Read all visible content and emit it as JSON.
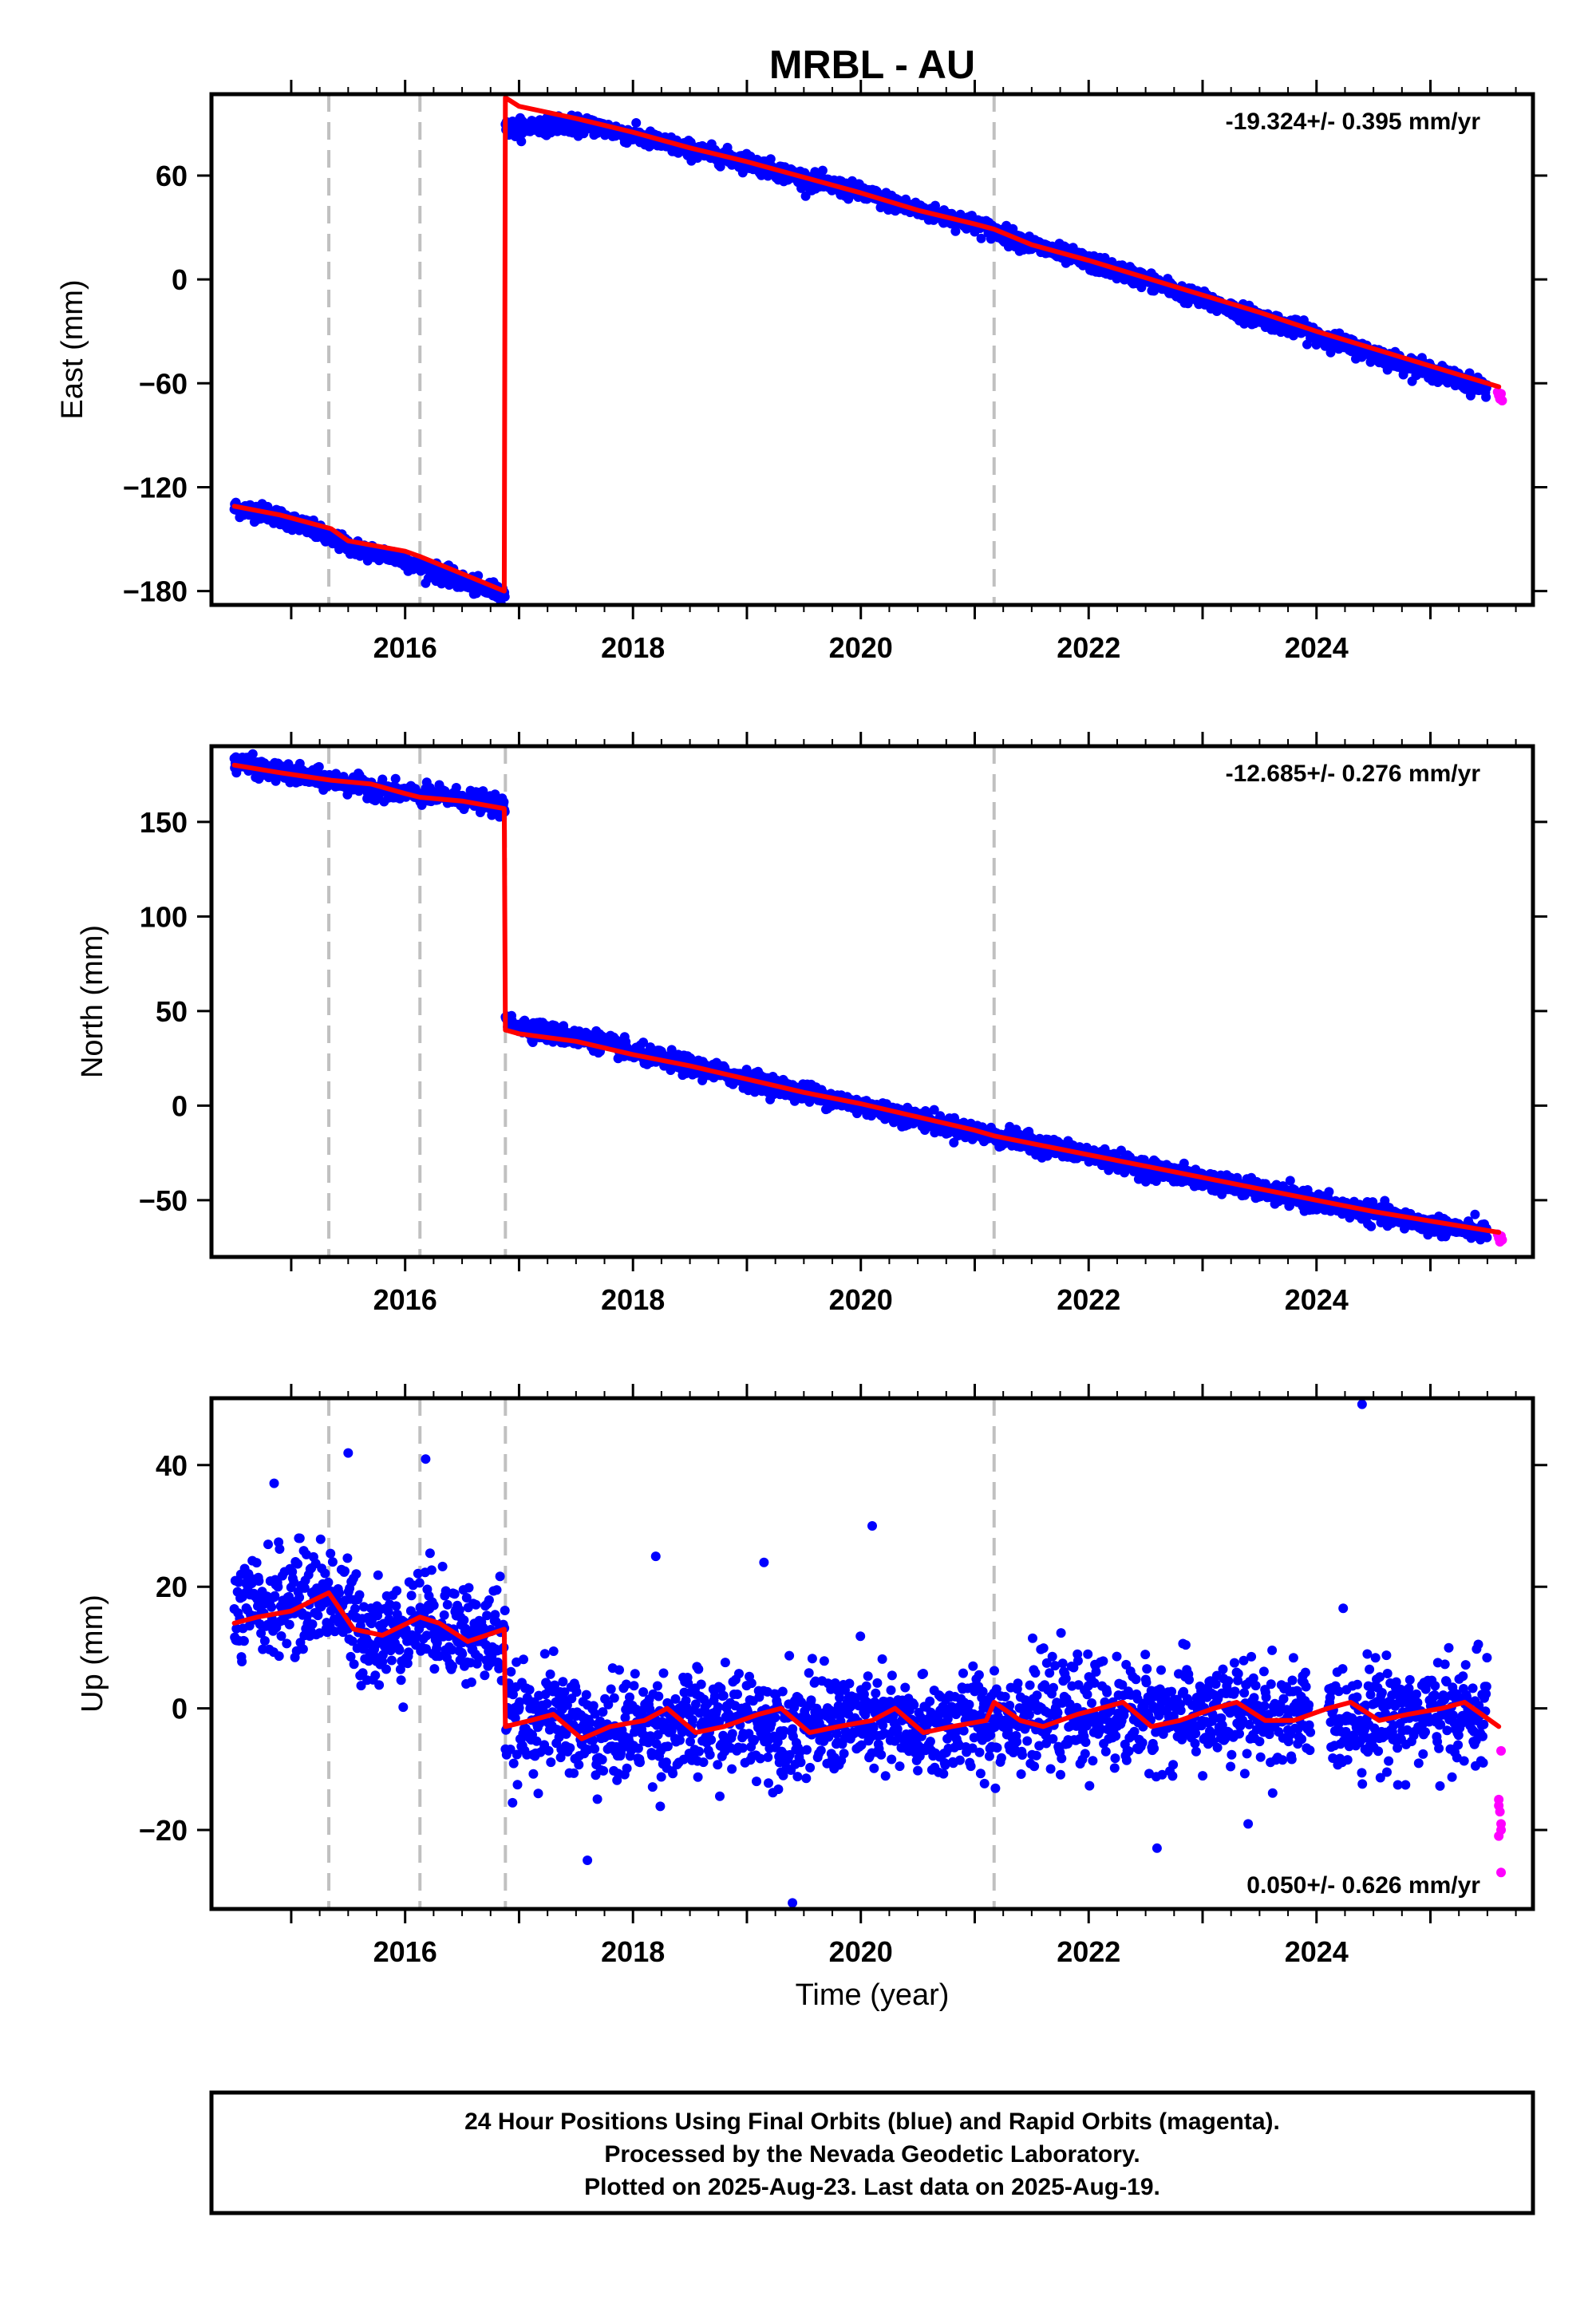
{
  "colors": {
    "final_orbits": "#0000ff",
    "rapid_orbits": "#ff00ff",
    "model": "#ff0000",
    "event_lines": "#c0c0c0",
    "frame": "#000000"
  },
  "figure": {
    "title": "MRBL - AU",
    "xlabel": "Time (year)",
    "footer": [
      "24 Hour Positions Using Final Orbits (blue) and Rapid Orbits (magenta).",
      "Processed by the Nevada Geodetic Laboratory.",
      "Plotted on 2025-Aug-23. Last data on 2025-Aug-19."
    ]
  },
  "chart_data": [
    {
      "type": "scatter",
      "panel": "east",
      "ylabel": "East (mm)",
      "rate_label": "-19.324+/- 0.395 mm/yr",
      "rate_position": "top-right",
      "xlim": [
        2014.3,
        2025.9
      ],
      "ylim": [
        -188,
        107
      ],
      "xticks": [
        2016,
        2018,
        2020,
        2022,
        2024
      ],
      "yticks": [
        -180,
        -120,
        -60,
        0,
        60
      ],
      "event_lines": [
        2015.33,
        2016.13,
        2021.17
      ],
      "offset_epoch": 2016.88,
      "final_series": {
        "name": "Final Orbits",
        "x": [
          2014.5,
          2014.8,
          2015.1,
          2015.35,
          2015.6,
          2015.9,
          2016.13,
          2016.4,
          2016.65,
          2016.88,
          2016.92,
          2017.3,
          2017.7,
          2018.0,
          2018.5,
          2019.0,
          2019.5,
          2020.0,
          2020.5,
          2021.0,
          2021.5,
          2022.0,
          2022.5,
          2023.0,
          2023.5,
          2024.0,
          2024.5,
          2025.0,
          2025.5
        ],
        "y": [
          -132,
          -135,
          -142,
          -150,
          -156,
          -160,
          -166,
          -172,
          -178,
          -181,
          87,
          90,
          88,
          83,
          75,
          68,
          58,
          50,
          40,
          32,
          20,
          10,
          0,
          -12,
          -22,
          -32,
          -43,
          -53,
          -63
        ]
      },
      "rapid_series": {
        "name": "Rapid Orbits",
        "x": [
          2025.59,
          2025.6,
          2025.61,
          2025.62,
          2025.63
        ],
        "y": [
          -65,
          -67,
          -69,
          -66,
          -70
        ]
      },
      "model_series": {
        "x": [
          2014.5,
          2014.9,
          2015.35,
          2015.5,
          2016.0,
          2016.13,
          2016.5,
          2016.87,
          2016.88,
          2017.0,
          2017.5,
          2018.0,
          2018.5,
          2019.0,
          2019.5,
          2020.0,
          2020.5,
          2021.0,
          2021.17,
          2021.5,
          2022.0,
          2022.5,
          2023.0,
          2023.5,
          2024.0,
          2024.5,
          2025.0,
          2025.6
        ],
        "y": [
          -131,
          -136,
          -144,
          -151,
          -157,
          -160,
          -170,
          -180,
          105,
          100,
          93,
          85,
          76,
          68,
          59,
          50,
          40,
          32,
          29,
          20,
          11,
          1,
          -9,
          -19,
          -30,
          -40,
          -50,
          -62
        ]
      }
    },
    {
      "type": "scatter",
      "panel": "north",
      "ylabel": "North (mm)",
      "rate_label": "-12.685+/- 0.276 mm/yr",
      "rate_position": "top-right",
      "xlim": [
        2014.3,
        2025.9
      ],
      "ylim": [
        -80,
        190
      ],
      "xticks": [
        2016,
        2018,
        2020,
        2022,
        2024
      ],
      "yticks": [
        -50,
        0,
        50,
        100,
        150
      ],
      "event_lines": [
        2015.33,
        2016.13,
        2016.88,
        2021.17
      ],
      "offset_epoch": 2016.88,
      "final_series": {
        "name": "Final Orbits",
        "x": [
          2014.5,
          2014.8,
          2015.1,
          2015.35,
          2015.6,
          2015.9,
          2016.13,
          2016.4,
          2016.65,
          2016.86,
          2016.9,
          2017.3,
          2017.7,
          2018.0,
          2018.5,
          2019.0,
          2019.5,
          2020.0,
          2020.5,
          2021.0,
          2021.5,
          2022.0,
          2022.5,
          2023.0,
          2023.5,
          2024.0,
          2024.5,
          2025.0,
          2025.5
        ],
        "y": [
          182,
          177,
          174,
          172,
          169,
          166,
          164,
          163,
          161,
          157,
          44,
          38,
          34,
          28,
          21,
          14,
          7,
          0,
          -7,
          -14,
          -20,
          -26,
          -33,
          -39,
          -45,
          -51,
          -57,
          -63,
          -67
        ]
      },
      "rapid_series": {
        "name": "Rapid Orbits",
        "x": [
          2025.59,
          2025.6,
          2025.61,
          2025.62,
          2025.63
        ],
        "y": [
          -68,
          -70,
          -72,
          -69,
          -71
        ]
      },
      "model_series": {
        "x": [
          2014.5,
          2014.9,
          2015.35,
          2015.7,
          2016.0,
          2016.13,
          2016.5,
          2016.87,
          2016.88,
          2017.0,
          2017.5,
          2018.0,
          2018.5,
          2019.0,
          2019.5,
          2020.0,
          2020.5,
          2021.0,
          2021.17,
          2021.5,
          2022.0,
          2022.5,
          2023.0,
          2023.5,
          2024.0,
          2024.5,
          2025.0,
          2025.6
        ],
        "y": [
          180,
          176,
          172,
          170,
          165,
          163,
          161,
          157,
          40,
          38,
          34,
          27,
          21,
          14,
          7,
          1,
          -6,
          -13,
          -16,
          -20,
          -26,
          -32,
          -38,
          -44,
          -50,
          -56,
          -61,
          -67
        ]
      }
    },
    {
      "type": "scatter",
      "panel": "up",
      "ylabel": "Up (mm)",
      "rate_label": "0.050+/- 0.626 mm/yr",
      "rate_position": "bottom-right",
      "xlim": [
        2014.3,
        2025.9
      ],
      "ylim": [
        -33,
        51
      ],
      "xticks": [
        2016,
        2018,
        2020,
        2022,
        2024
      ],
      "yticks": [
        -20,
        0,
        20,
        40
      ],
      "event_lines": [
        2015.33,
        2016.13,
        2016.88,
        2021.17
      ],
      "offset_epoch": 2016.88,
      "final_series": {
        "name": "Final Orbits",
        "x": [
          2014.5,
          2014.8,
          2015.1,
          2015.35,
          2015.6,
          2015.9,
          2016.13,
          2016.4,
          2016.65,
          2016.86,
          2016.9,
          2017.3,
          2017.7,
          2018.0,
          2018.5,
          2019.0,
          2019.5,
          2020.0,
          2020.5,
          2021.0,
          2021.5,
          2022.0,
          2022.5,
          2023.0,
          2023.5,
          2024.0,
          2024.5,
          2025.0,
          2025.5
        ],
        "y": [
          15,
          17,
          18,
          19,
          13,
          12,
          15,
          14,
          11,
          13,
          -3,
          -1,
          -5,
          -3,
          -3,
          -2,
          -3,
          -2,
          -4,
          -2,
          -1,
          -1,
          -1,
          -1,
          -1,
          -2,
          -1,
          -1,
          -1
        ]
      },
      "outliers": {
        "x": [
          2014.85,
          2015.5,
          2016.18,
          2018.2,
          2019.15,
          2020.1,
          2024.4,
          2017.6,
          2019.4,
          2022.6,
          2023.4
        ],
        "y": [
          37,
          42,
          41,
          25,
          24,
          30,
          50,
          -25,
          -32,
          -23,
          -19
        ]
      },
      "rapid_series": {
        "name": "Rapid Orbits",
        "x": [
          2025.62,
          2025.6,
          2025.61,
          2025.62,
          2025.6,
          2025.62,
          2025.6,
          2025.62
        ],
        "y": [
          -7,
          -15,
          -17,
          -19,
          -21,
          -20,
          -16,
          -27
        ]
      },
      "model_series": {
        "x": [
          2014.5,
          2014.7,
          2015.0,
          2015.33,
          2015.55,
          2015.8,
          2016.13,
          2016.3,
          2016.55,
          2016.87,
          2016.88,
          2017.1,
          2017.3,
          2017.55,
          2017.8,
          2018.1,
          2018.3,
          2018.55,
          2018.8,
          2019.1,
          2019.3,
          2019.55,
          2019.8,
          2020.1,
          2020.3,
          2020.55,
          2020.8,
          2021.1,
          2021.17,
          2021.4,
          2021.6,
          2021.9,
          2022.1,
          2022.3,
          2022.55,
          2022.8,
          2023.1,
          2023.3,
          2023.55,
          2023.8,
          2024.1,
          2024.3,
          2024.55,
          2024.8,
          2025.1,
          2025.3,
          2025.6
        ],
        "y": [
          14,
          15,
          16,
          19,
          13,
          12,
          15,
          14,
          11,
          13,
          -3,
          -2,
          -1,
          -5,
          -3,
          -2,
          0,
          -4,
          -3,
          -1,
          0,
          -4,
          -3,
          -2,
          0,
          -4,
          -3,
          -2,
          1,
          -2,
          -3,
          -1,
          0,
          1,
          -3,
          -2,
          0,
          1,
          -2,
          -2,
          0,
          1,
          -2,
          -1,
          0,
          1,
          -3
        ]
      }
    }
  ]
}
